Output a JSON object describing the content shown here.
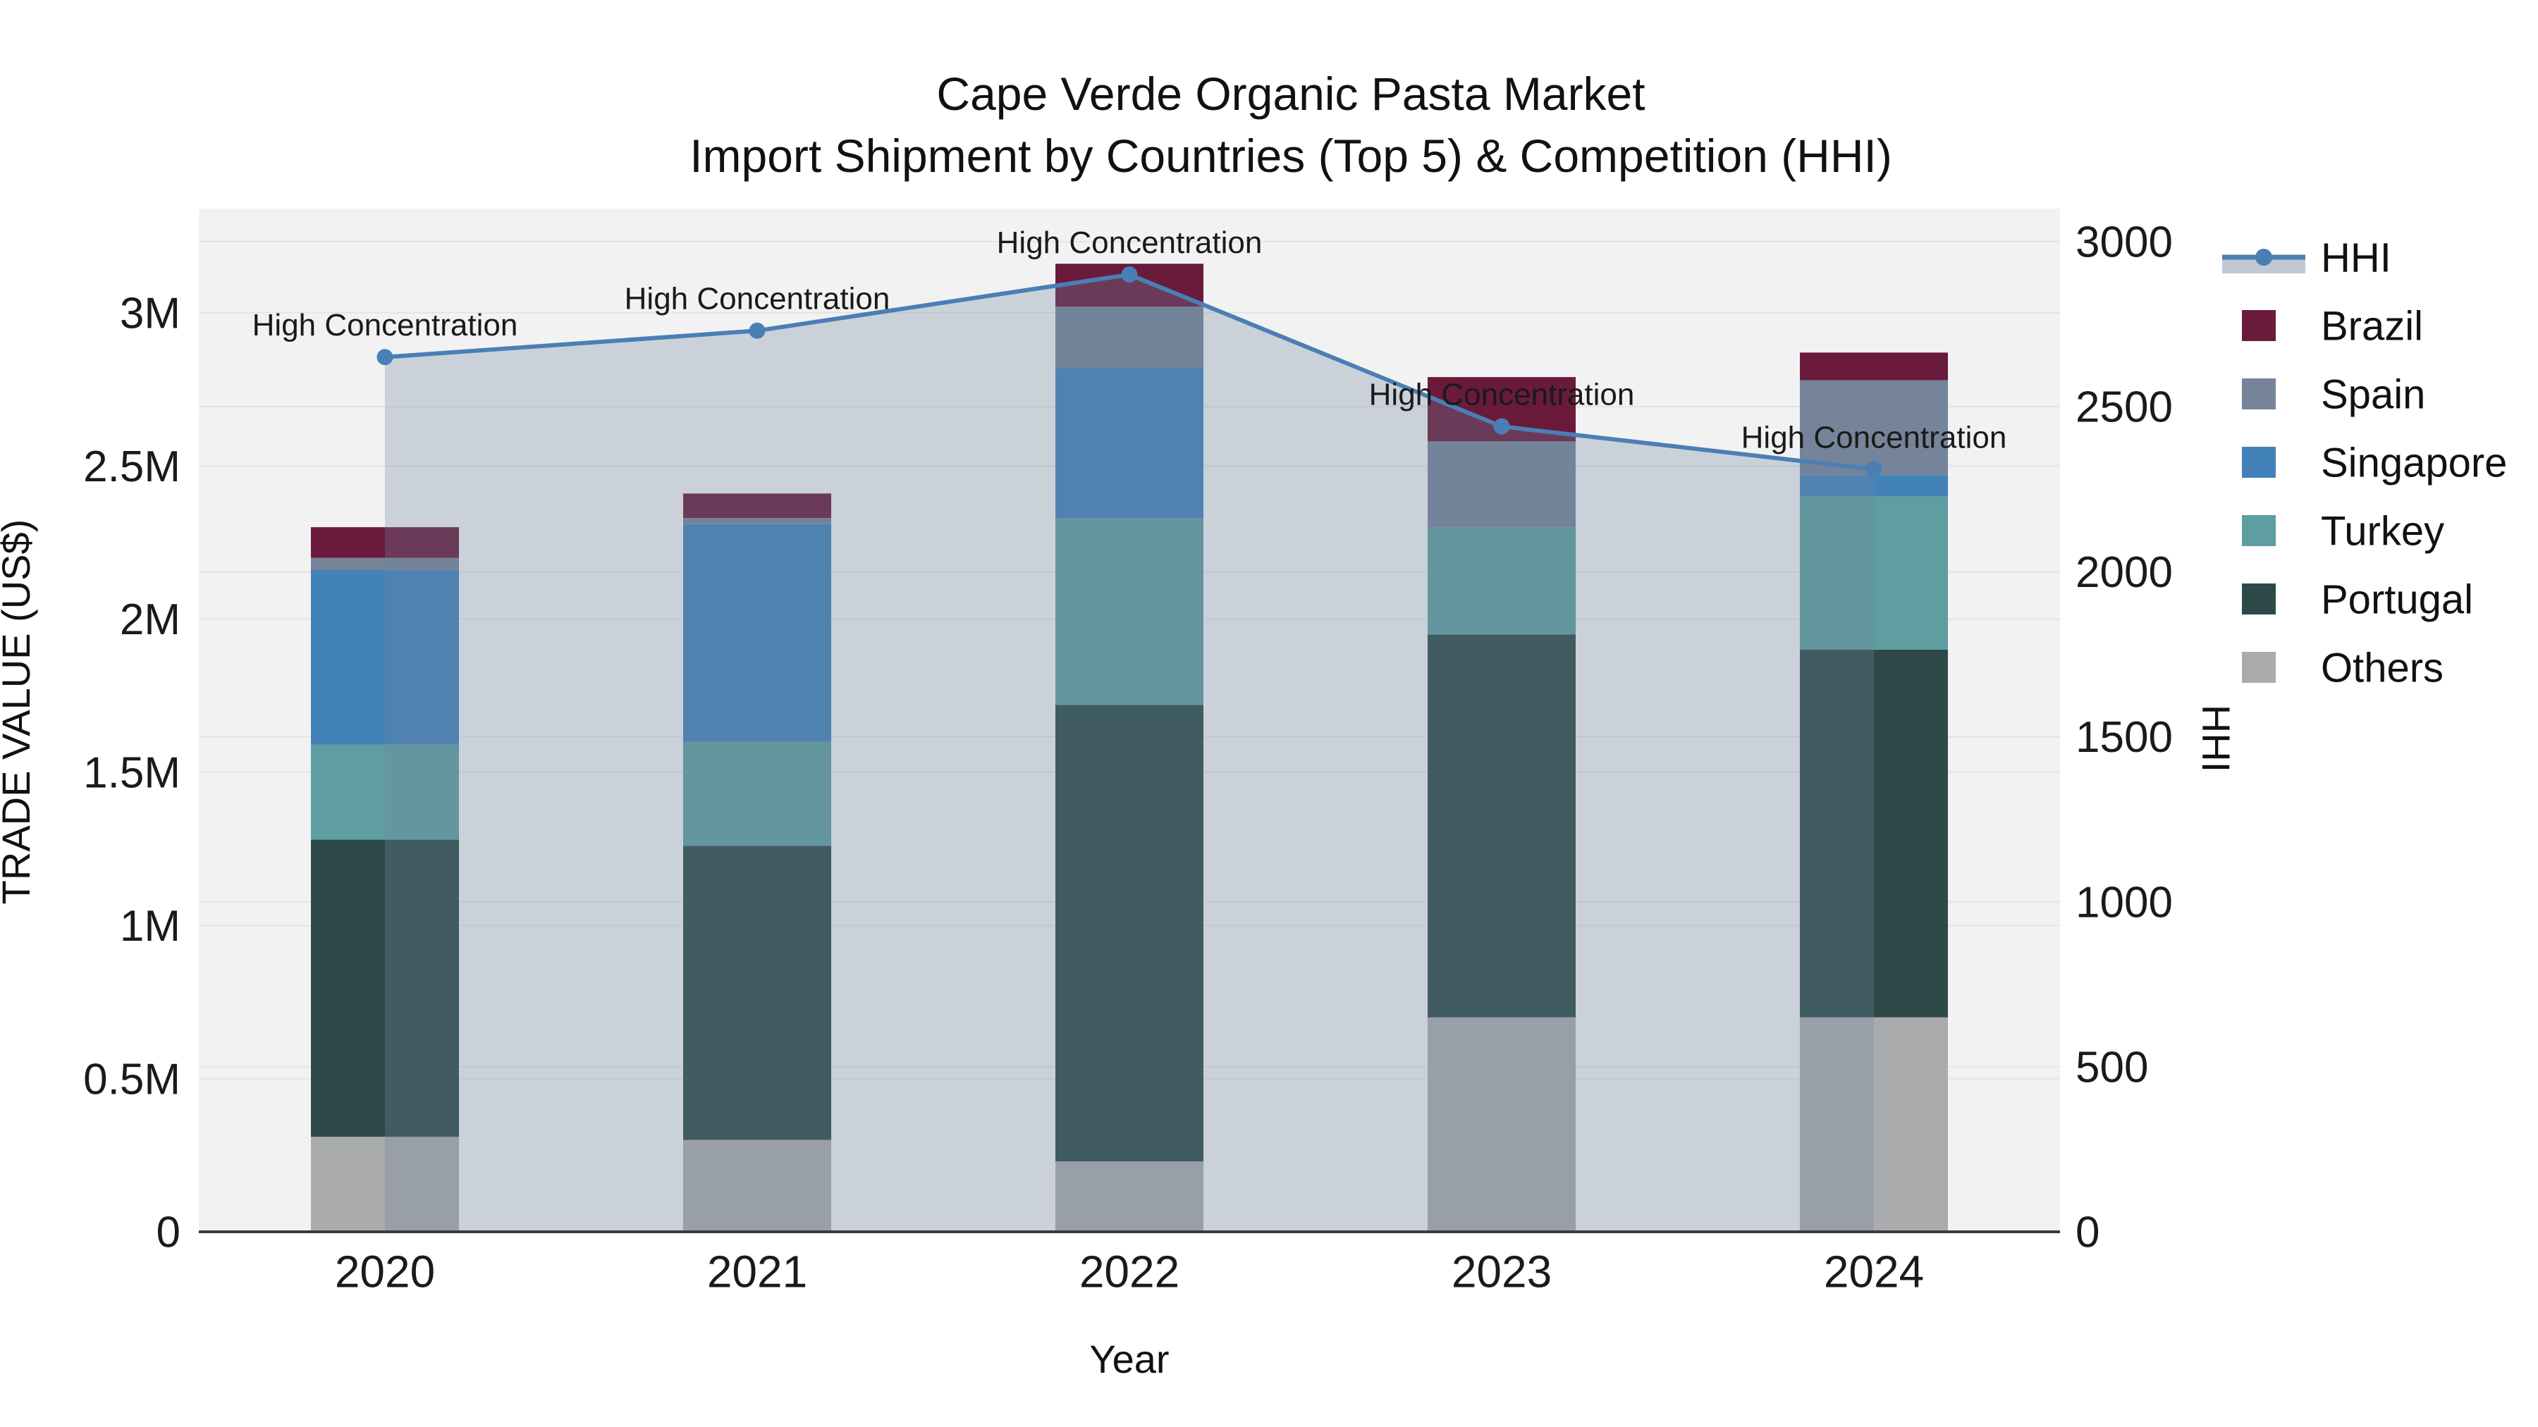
{
  "title": {
    "line1": "Cape Verde Organic Pasta Market",
    "line2": "Import Shipment by Countries (Top 5) & Competition (HHI)"
  },
  "chart_data": {
    "type": "stacked-bar+line",
    "categories": [
      "2020",
      "2021",
      "2022",
      "2023",
      "2024"
    ],
    "bar_value_unit": "million US$",
    "bar_stack_order_bottom_to_top": [
      "Others",
      "Portugal",
      "Turkey",
      "Singapore",
      "Spain",
      "Brazil"
    ],
    "series": [
      {
        "name": "Others",
        "color": "#aaabad",
        "values": [
          0.31,
          0.3,
          0.23,
          0.7,
          0.7
        ]
      },
      {
        "name": "Portugal",
        "color": "#2d4a48",
        "values": [
          0.97,
          0.96,
          1.49,
          1.25,
          1.2
        ]
      },
      {
        "name": "Turkey",
        "color": "#5f9ea0",
        "values": [
          0.31,
          0.34,
          0.61,
          0.35,
          0.5
        ]
      },
      {
        "name": "Singapore",
        "color": "#4282b8",
        "values": [
          0.57,
          0.71,
          0.49,
          0.0,
          0.07
        ]
      },
      {
        "name": "Spain",
        "color": "#758499",
        "values": [
          0.04,
          0.02,
          0.2,
          0.28,
          0.31
        ]
      },
      {
        "name": "Brazil",
        "color": "#6a1a3b",
        "values": [
          0.1,
          0.08,
          0.14,
          0.21,
          0.09
        ]
      }
    ],
    "line": {
      "name": "HHI",
      "color": "#4a7fb5",
      "fill_color": "#7186a0",
      "fill_opacity": 0.3,
      "values": [
        2650,
        2730,
        2900,
        2440,
        2310
      ]
    },
    "annotations": [
      "High Concentration",
      "High Concentration",
      "High Concentration",
      "High Concentration",
      "High Concentration"
    ],
    "xlabel": "Year",
    "ylabel_left": "TRADE VALUE (US$)",
    "ylabel_right": "HHI",
    "yticks_left": {
      "labels": [
        "0",
        "0.5M",
        "1M",
        "1.5M",
        "2M",
        "2.5M",
        "3M"
      ],
      "values_m": [
        0,
        0.5,
        1,
        1.5,
        2,
        2.5,
        3
      ]
    },
    "yticks_right": [
      0,
      500,
      1000,
      1500,
      2000,
      2500,
      3000
    ],
    "ylim_left_m": [
      0,
      3.34
    ],
    "ylim_right": [
      0,
      3100
    ],
    "legend_order": [
      "HHI",
      "Brazil",
      "Spain",
      "Singapore",
      "Turkey",
      "Portugal",
      "Others"
    ],
    "grid": true,
    "legend_position": "right",
    "plot_bg": "#f2f2f2",
    "grid_color": "#e4e4e4",
    "axis_line_color": "#3a3a3a",
    "text_color": "#1a1a1a"
  }
}
